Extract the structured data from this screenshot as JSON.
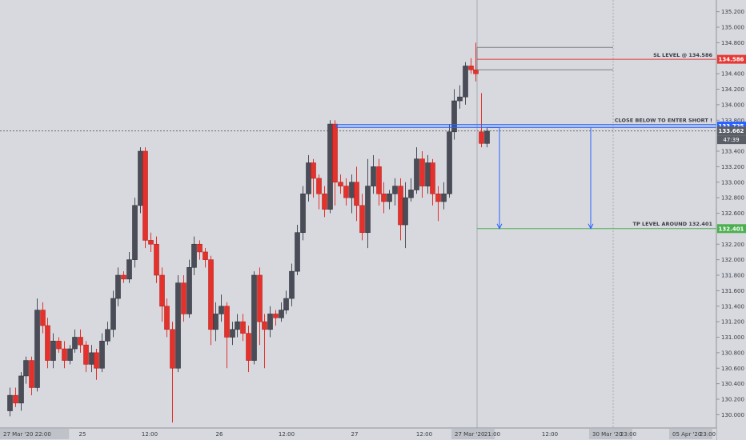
{
  "colors": {
    "background": "#d7d9df",
    "up_candle": "#4a4d57",
    "down_candle": "#e5312b",
    "entry_line": "#2962ff",
    "sl_line": "#e53935",
    "tp_line": "#4caf50",
    "axis_text": "#3a3d45"
  },
  "chart_data": {
    "type": "candlestick",
    "timeframe": "1h",
    "y_axis": {
      "ticks": [
        "135.200",
        "135.000",
        "134.800",
        "134.400",
        "134.200",
        "134.000",
        "133.800",
        "133.400",
        "133.200",
        "133.000",
        "132.800",
        "132.600",
        "132.200",
        "132.000",
        "131.800",
        "131.600",
        "131.400",
        "131.200",
        "131.000",
        "130.800",
        "130.600",
        "130.400",
        "130.200",
        "130.000"
      ],
      "ylim": [
        129.88,
        135.32
      ],
      "position": "right"
    },
    "x_axis": {
      "ticks": [
        "27 Mar '20  22:00",
        "25",
        "12:00",
        "26",
        "12:00",
        "27",
        "12:00",
        "27 Mar '20",
        "21:00",
        "12:00",
        "30 Mar '20",
        "23:00",
        "05 Apr '20",
        "23:00"
      ]
    },
    "candles": [
      [
        130.05,
        130.25,
        129.98,
        130.35
      ],
      [
        130.25,
        130.15,
        130.1,
        130.35
      ],
      [
        130.15,
        130.5,
        130.05,
        130.55
      ],
      [
        130.5,
        130.7,
        130.4,
        130.75
      ],
      [
        130.7,
        130.35,
        130.25,
        130.75
      ],
      [
        130.35,
        131.35,
        130.3,
        131.5
      ],
      [
        131.35,
        131.15,
        131.05,
        131.45
      ],
      [
        131.15,
        130.7,
        130.6,
        131.25
      ],
      [
        130.7,
        130.95,
        130.6,
        131.05
      ],
      [
        130.95,
        130.85,
        130.8,
        131.0
      ],
      [
        130.85,
        130.7,
        130.6,
        130.95
      ],
      [
        130.7,
        130.85,
        130.65,
        130.9
      ],
      [
        130.85,
        131.0,
        130.8,
        131.1
      ],
      [
        131.0,
        130.9,
        130.8,
        131.1
      ],
      [
        130.9,
        130.65,
        130.55,
        130.95
      ],
      [
        130.65,
        130.8,
        130.55,
        130.9
      ],
      [
        130.8,
        130.6,
        130.45,
        130.85
      ],
      [
        130.6,
        130.95,
        130.55,
        131.05
      ],
      [
        130.95,
        131.1,
        130.9,
        131.2
      ],
      [
        131.1,
        131.5,
        131.0,
        131.6
      ],
      [
        131.5,
        131.8,
        131.4,
        131.9
      ],
      [
        131.8,
        131.75,
        131.7,
        131.85
      ],
      [
        131.75,
        132.0,
        131.7,
        132.1
      ],
      [
        132.0,
        132.7,
        131.9,
        132.8
      ],
      [
        132.7,
        133.4,
        132.6,
        133.45
      ],
      [
        133.4,
        132.25,
        132.15,
        133.45
      ],
      [
        132.25,
        132.2,
        132.1,
        132.35
      ],
      [
        132.2,
        131.8,
        131.7,
        132.3
      ],
      [
        131.8,
        131.4,
        131.2,
        131.9
      ],
      [
        131.4,
        131.1,
        131.0,
        131.5
      ],
      [
        131.1,
        130.6,
        129.9,
        131.2
      ],
      [
        130.6,
        131.7,
        130.55,
        131.8
      ],
      [
        131.7,
        131.3,
        131.2,
        131.8
      ],
      [
        131.3,
        131.9,
        131.25,
        132.0
      ],
      [
        131.9,
        132.2,
        131.8,
        132.3
      ],
      [
        132.2,
        132.1,
        132.0,
        132.25
      ],
      [
        132.1,
        132.0,
        131.9,
        132.15
      ],
      [
        132.0,
        131.1,
        130.9,
        132.05
      ],
      [
        131.1,
        131.3,
        130.95,
        131.45
      ],
      [
        131.3,
        131.4,
        131.2,
        131.55
      ],
      [
        131.4,
        131.0,
        130.6,
        131.45
      ],
      [
        131.0,
        131.1,
        130.9,
        131.2
      ],
      [
        131.1,
        131.2,
        131.0,
        131.3
      ],
      [
        131.2,
        131.05,
        130.95,
        131.3
      ],
      [
        131.05,
        130.7,
        130.55,
        131.15
      ],
      [
        130.7,
        131.8,
        130.65,
        131.85
      ],
      [
        131.8,
        131.2,
        130.9,
        131.9
      ],
      [
        131.2,
        131.1,
        130.6,
        131.3
      ],
      [
        131.1,
        131.3,
        131.0,
        131.4
      ],
      [
        131.3,
        131.25,
        131.15,
        131.35
      ],
      [
        131.25,
        131.35,
        131.2,
        131.45
      ],
      [
        131.35,
        131.5,
        131.3,
        131.6
      ],
      [
        131.5,
        131.85,
        131.4,
        131.95
      ],
      [
        131.85,
        132.35,
        131.8,
        132.45
      ],
      [
        132.35,
        132.85,
        132.25,
        132.95
      ],
      [
        132.85,
        133.25,
        132.75,
        133.35
      ],
      [
        133.25,
        133.05,
        132.8,
        133.3
      ],
      [
        133.05,
        132.85,
        132.65,
        133.1
      ],
      [
        132.85,
        132.65,
        132.55,
        132.95
      ],
      [
        132.65,
        133.75,
        132.6,
        133.8
      ],
      [
        133.75,
        133.0,
        132.7,
        133.8
      ],
      [
        133.0,
        132.95,
        132.85,
        133.1
      ],
      [
        132.95,
        132.8,
        132.7,
        133.05
      ],
      [
        132.8,
        133.0,
        132.6,
        133.1
      ],
      [
        133.0,
        132.7,
        132.5,
        133.2
      ],
      [
        132.7,
        132.35,
        132.25,
        132.85
      ],
      [
        132.35,
        132.95,
        132.15,
        133.3
      ],
      [
        132.95,
        133.2,
        132.85,
        133.35
      ],
      [
        133.2,
        132.85,
        132.7,
        133.3
      ],
      [
        132.85,
        132.75,
        132.6,
        133.0
      ],
      [
        132.75,
        132.85,
        132.65,
        132.9
      ],
      [
        132.85,
        132.95,
        132.7,
        133.05
      ],
      [
        132.95,
        132.45,
        132.25,
        133.05
      ],
      [
        132.45,
        132.8,
        132.15,
        133.0
      ],
      [
        132.8,
        132.9,
        132.75,
        133.05
      ],
      [
        132.9,
        133.3,
        132.85,
        133.45
      ],
      [
        133.3,
        132.95,
        132.8,
        133.4
      ],
      [
        132.95,
        133.25,
        132.85,
        133.35
      ],
      [
        133.25,
        132.85,
        132.7,
        133.3
      ],
      [
        132.85,
        132.75,
        132.5,
        132.95
      ],
      [
        132.75,
        132.85,
        132.65,
        133.0
      ],
      [
        132.85,
        133.65,
        132.8,
        133.75
      ],
      [
        133.65,
        134.05,
        133.55,
        134.2
      ],
      [
        134.05,
        134.1,
        133.95,
        134.25
      ],
      [
        134.1,
        134.5,
        134.0,
        134.55
      ],
      [
        134.5,
        134.45,
        134.4,
        134.6
      ],
      [
        134.45,
        134.4,
        134.3,
        134.8
      ],
      [
        133.65,
        133.5,
        133.45,
        134.15
      ],
      [
        133.5,
        133.66,
        133.45,
        133.7
      ]
    ],
    "levels": [
      {
        "name": "sl",
        "label": "SL LEVEL @ 134.586",
        "value": 134.586,
        "badge": "134.586",
        "color": "#e53935"
      },
      {
        "name": "entry",
        "label": "CLOSE BELOW TO ENTER SHORT !",
        "value": 133.725,
        "badge": "133.725",
        "color": "#2962ff"
      },
      {
        "name": "tp",
        "label": "TP LEVEL AROUND 132.401",
        "value": 132.401,
        "badge": "132.401",
        "color": "#4caf50"
      }
    ],
    "current_price": {
      "value": 133.662,
      "badge": "133.662",
      "countdown": "47:39"
    },
    "range_box": {
      "top": 134.74,
      "bottom": 134.45
    },
    "grid": false,
    "legend": "none"
  }
}
